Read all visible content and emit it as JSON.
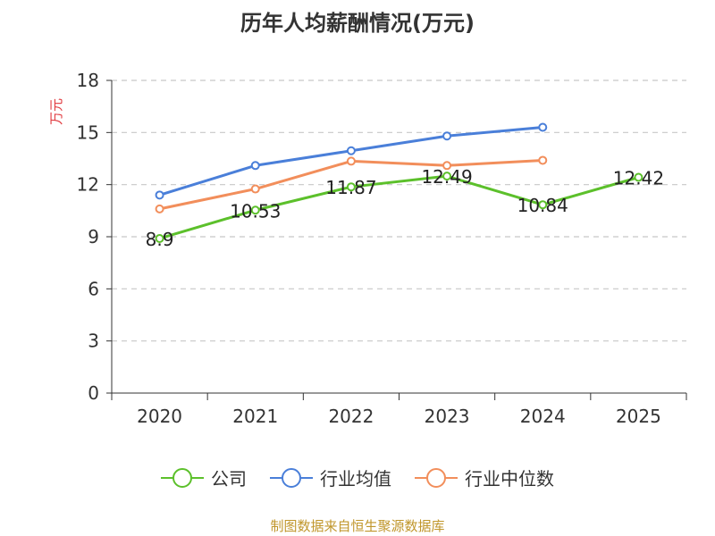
{
  "title": "历年人均薪酬情况(万元)",
  "source": "制图数据来自恒生聚源数据库",
  "chart_data": {
    "type": "line",
    "title": "历年人均薪酬情况(万元)",
    "ylabel": "万元",
    "xlabel": "",
    "categories": [
      "2020",
      "2021",
      "2022",
      "2023",
      "2024",
      "2025"
    ],
    "ylim": [
      0,
      18
    ],
    "yticks": [
      0,
      3,
      6,
      9,
      12,
      15,
      18
    ],
    "grid": true,
    "legend_position": "bottom",
    "series": [
      {
        "name": "公司",
        "color": "#5cc02b",
        "values": [
          8.9,
          10.53,
          11.87,
          12.49,
          10.84,
          12.42
        ],
        "show_labels": true
      },
      {
        "name": "行业均值",
        "color": "#4a7fd9",
        "values": [
          11.4,
          13.1,
          13.95,
          14.8,
          15.3,
          null
        ],
        "show_labels": false
      },
      {
        "name": "行业中位数",
        "color": "#f28e5b",
        "values": [
          10.6,
          11.75,
          13.35,
          13.1,
          13.4,
          null
        ],
        "show_labels": false
      }
    ]
  }
}
